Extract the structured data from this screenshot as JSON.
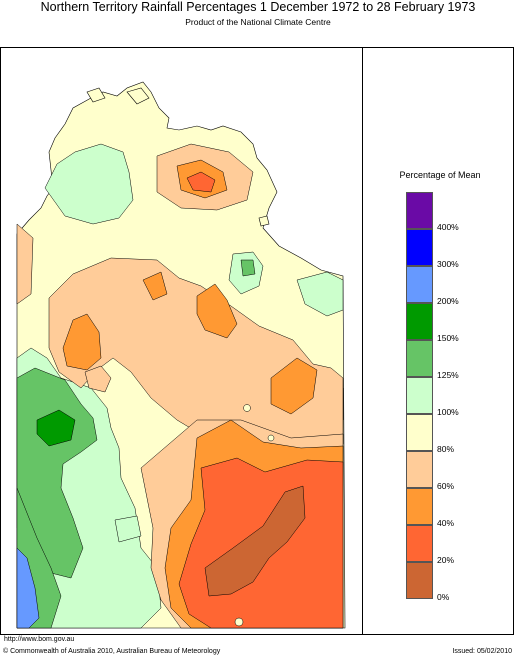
{
  "header": {
    "title": "Northern Territory Rainfall Percentages 1 December 1972 to 28 February 1973",
    "subtitle": "Product of the National Climate Centre"
  },
  "legend": {
    "title": "Percentage of Mean",
    "bins": [
      {
        "color": "#6a0aa6"
      },
      {
        "color": "#0000ff"
      },
      {
        "color": "#6699ff"
      },
      {
        "color": "#009a00"
      },
      {
        "color": "#66c466"
      },
      {
        "color": "#ccffcc"
      },
      {
        "color": "#ffffcc"
      },
      {
        "color": "#ffcc99"
      },
      {
        "color": "#ff9933"
      },
      {
        "color": "#ff6633"
      },
      {
        "color": "#cc6633"
      }
    ],
    "ticks": [
      "400%",
      "300%",
      "200%",
      "150%",
      "125%",
      "100%",
      "80%",
      "60%",
      "40%",
      "20%",
      "0%"
    ]
  },
  "footer": {
    "url": "http://www.bom.gov.au",
    "copyright": "© Commonwealth of Australia 2010, Australian Bureau of Meteorology",
    "issued": "Issued: 05/02/2010"
  }
}
